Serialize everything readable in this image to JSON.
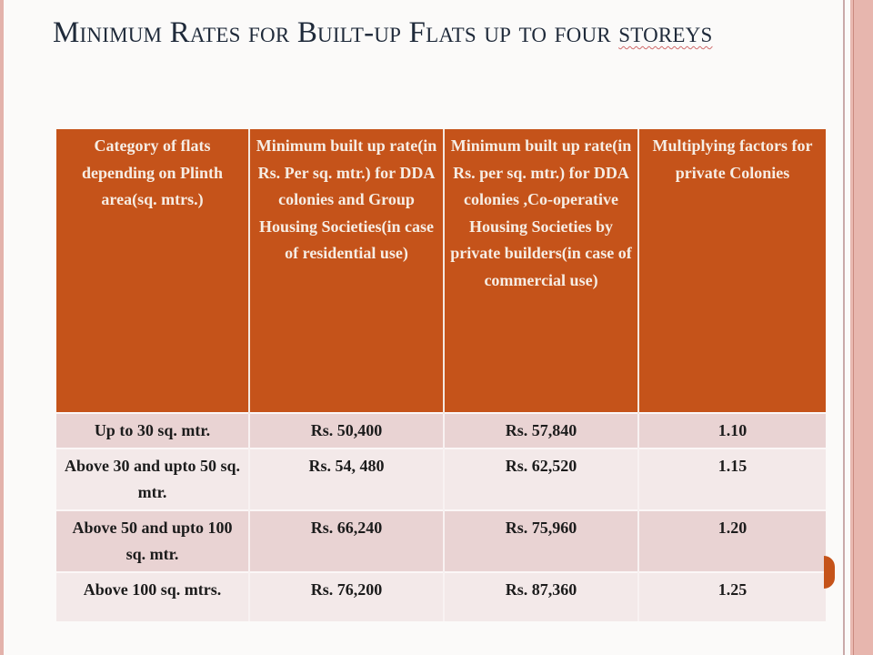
{
  "slide": {
    "title_main": "Minimum Rates for Built-up Flats up to four ",
    "title_underlined": "storeys"
  },
  "table": {
    "headers": [
      "Category of flats depending on Plinth area(sq. mtrs.)",
      "Minimum built up rate(in Rs. Per sq. mtr.) for DDA colonies and Group Housing Societies(in case of residential use)",
      "Minimum built up rate(in Rs. per sq. mtr.) for DDA colonies ,Co-operative Housing Societies by private builders(in case of commercial use)",
      "Multiplying factors for private Colonies"
    ],
    "rows": [
      [
        "Up to 30 sq. mtr.",
        "Rs. 50,400",
        "Rs. 57,840",
        "1.10"
      ],
      [
        "Above 30 and upto 50 sq. mtr.",
        "Rs. 54, 480",
        "Rs. 62,520",
        "1.15"
      ],
      [
        "Above 50 and upto 100 sq. mtr.",
        "Rs. 66,240",
        "Rs. 75,960",
        "1.20"
      ],
      [
        "Above 100 sq. mtrs.",
        "Rs. 76,200",
        "Rs. 87,360",
        "1.25"
      ]
    ]
  },
  "colors": {
    "header": "#c5531a",
    "row_odd": "#e9d3d3",
    "row_even": "#f3e9e9",
    "title": "#1f2a3a"
  }
}
